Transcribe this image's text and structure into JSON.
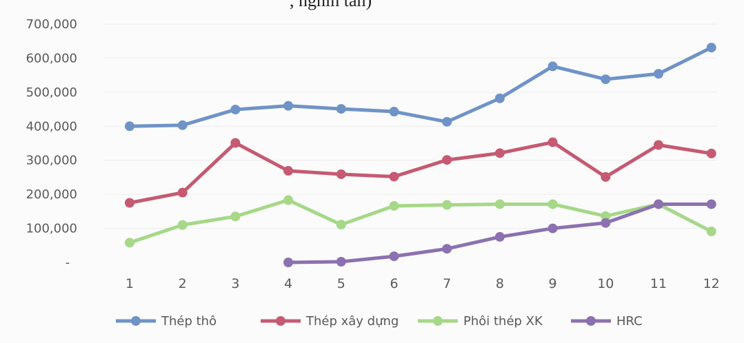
{
  "title_fragment": ", nghìn tấn)",
  "chart_data": {
    "type": "line",
    "x": [
      1,
      2,
      3,
      4,
      5,
      6,
      7,
      8,
      9,
      10,
      11,
      12
    ],
    "ylim": [
      0,
      700000
    ],
    "yticks": [
      "-",
      "100,000",
      "200,000",
      "300,000",
      "400,000",
      "500,000",
      "600,000",
      "700,000"
    ],
    "grid": true,
    "legend_position": "bottom",
    "series": [
      {
        "name": "Thép thô",
        "color": "#6f93c7",
        "values": [
          400000,
          403000,
          449000,
          460000,
          451000,
          443000,
          413000,
          482000,
          576000,
          538000,
          554000,
          631000
        ]
      },
      {
        "name": "Thép xây dựng",
        "color": "#c55a72",
        "values": [
          175000,
          205000,
          351000,
          269000,
          259000,
          252000,
          301000,
          321000,
          353000,
          251000,
          345000,
          320000
        ]
      },
      {
        "name": "Phôi thép XK",
        "color": "#a6d887",
        "values": [
          58000,
          110000,
          135000,
          183000,
          111000,
          166000,
          169000,
          171000,
          171000,
          136000,
          171000,
          91000
        ]
      },
      {
        "name": "HRC",
        "color": "#8c71b0",
        "values": [
          null,
          null,
          null,
          0,
          2000,
          18000,
          40000,
          75000,
          100000,
          116000,
          171000,
          171000
        ]
      }
    ]
  }
}
